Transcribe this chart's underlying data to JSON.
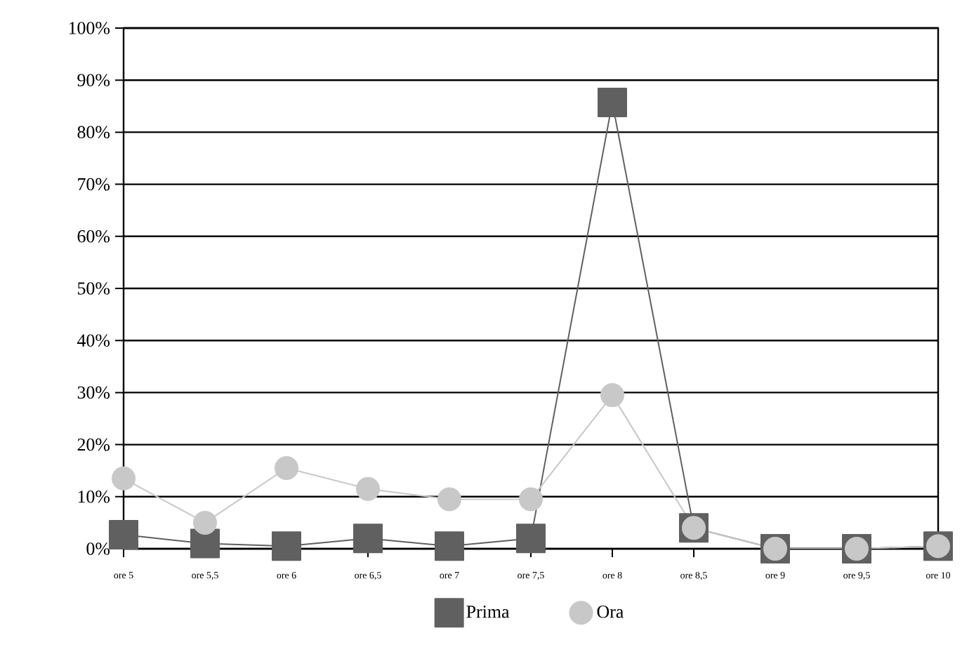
{
  "chart_data": {
    "type": "line",
    "categories": [
      "ore 5",
      "ore 5,5",
      "ore 6",
      "ore 6,5",
      "ore 7",
      "ore 7,5",
      "ore 8",
      "ore 8,5",
      "ore 9",
      "ore 9,5",
      "ore 10"
    ],
    "series": [
      {
        "name": "Prima",
        "color": "#606060",
        "marker": "square",
        "values": [
          2.7,
          1,
          0.5,
          2,
          0.5,
          2,
          85.7,
          4,
          0,
          0,
          0.5
        ]
      },
      {
        "name": "Ora",
        "color": "#c8c8c8",
        "marker": "circle",
        "values": [
          13.5,
          5,
          15.5,
          11.5,
          9.5,
          9.5,
          29.5,
          4,
          0,
          0,
          0.5
        ]
      }
    ],
    "ylim": [
      0,
      100
    ],
    "yticks": [
      {
        "value": 0,
        "label": "0%"
      },
      {
        "value": 10,
        "label": "10%"
      },
      {
        "value": 20,
        "label": "20%"
      },
      {
        "value": 30,
        "label": "30%"
      },
      {
        "value": 40,
        "label": "40%"
      },
      {
        "value": 50,
        "label": "50%"
      },
      {
        "value": 60,
        "label": "60%"
      },
      {
        "value": 70,
        "label": "70%"
      },
      {
        "value": 80,
        "label": "80%"
      },
      {
        "value": 90,
        "label": "90%"
      },
      {
        "value": 100,
        "label": "100%"
      }
    ],
    "grid": "y",
    "legend": "bottom"
  }
}
